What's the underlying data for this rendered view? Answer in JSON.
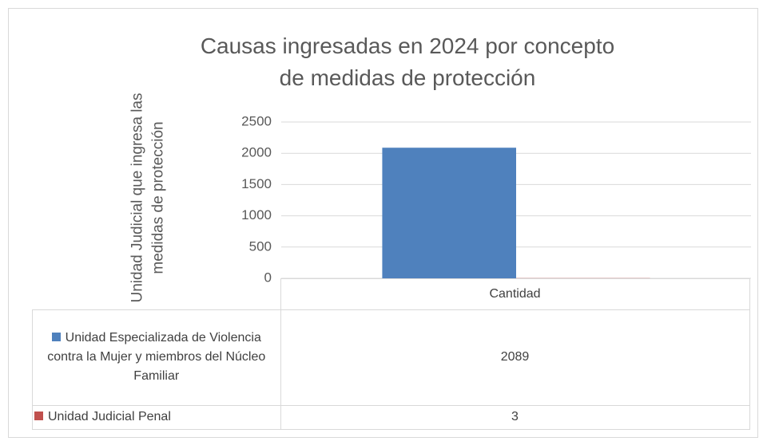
{
  "chart_data": {
    "type": "bar",
    "title": "Causas ingresadas en 2024 por concepto de medidas de protección",
    "ylabel": "Unidad Judicial que ingresa las medidas de protección",
    "categories": [
      "Cantidad"
    ],
    "series": [
      {
        "name": "Unidad Especializada de Violencia contra la Mujer y miembros del Núcleo Familiar",
        "color": "#4f81bd",
        "values": [
          2089
        ]
      },
      {
        "name": "Unidad Judicial Penal",
        "color": "#c0504d",
        "values": [
          3
        ]
      }
    ],
    "ylim": [
      0,
      2500
    ],
    "yticks": [
      0,
      500,
      1000,
      1500,
      2000,
      2500
    ],
    "grid": true,
    "data_table": true
  }
}
